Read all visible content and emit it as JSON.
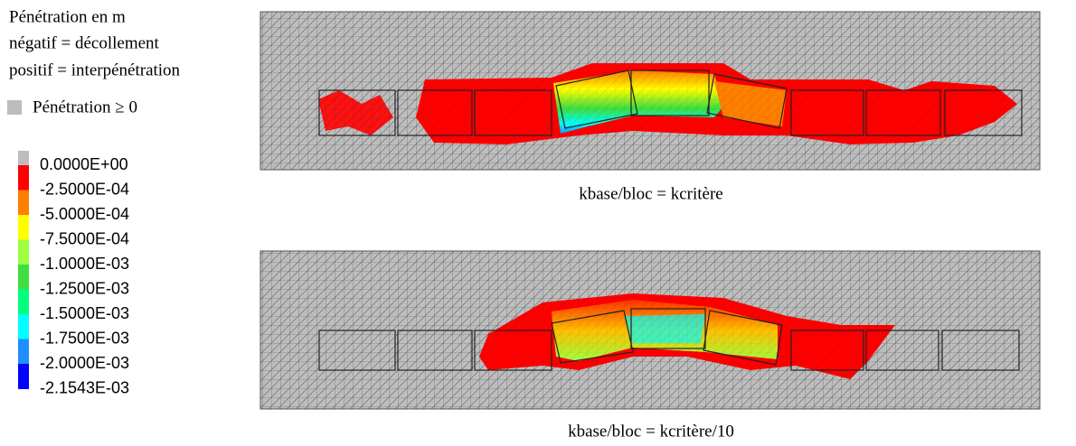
{
  "legend": {
    "title_lines": [
      "Pénétration en m",
      "négatif = décollement",
      "positif = interpénétration"
    ],
    "positive_label": "Pénétration ≥ 0",
    "positive_color": "#bdbdbd",
    "levels": [
      "0.0000E+00",
      "-2.5000E-04",
      "-5.0000E-04",
      "-7.5000E-04",
      "-1.0000E-03",
      "-1.2500E-03",
      "-1.5000E-03",
      "-1.7500E-03",
      "-2.0000E-03",
      "-2.1543E-03"
    ],
    "colors": [
      "#ff0000",
      "#ff7f00",
      "#ffff00",
      "#9fff3f",
      "#3fdf3f",
      "#00ff7f",
      "#00ffff",
      "#1f8fff",
      "#0000ff"
    ]
  },
  "panels": [
    {
      "caption": "kbase/bloc = kcritère"
    },
    {
      "caption": "kbase/bloc = kcritère/10"
    }
  ]
}
